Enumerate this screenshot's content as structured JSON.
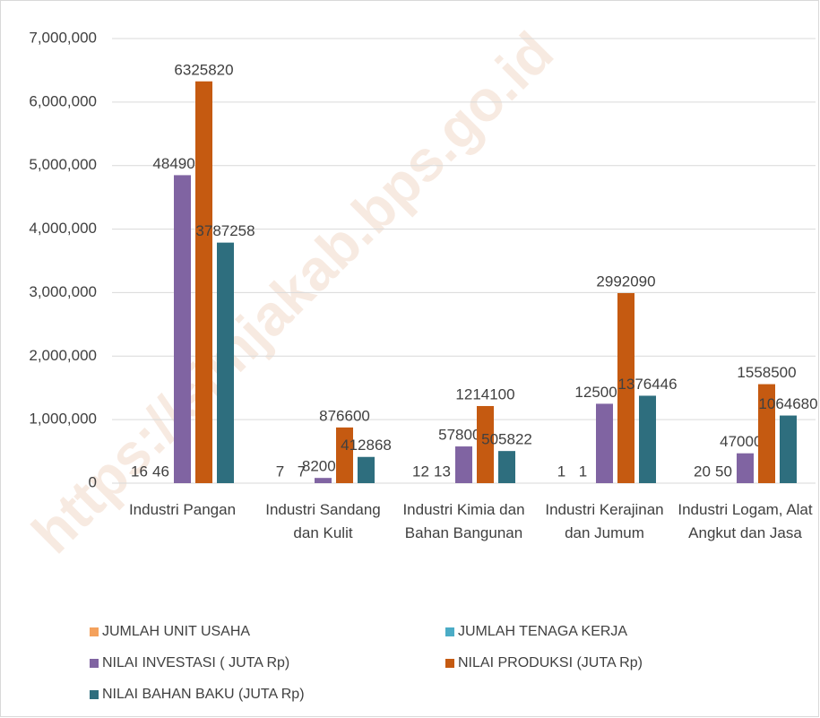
{
  "chart_data": {
    "type": "bar",
    "categories": [
      "Industri Pangan",
      "Industri Sandang dan Kulit",
      "Industri Kimia dan Bahan Bangunan",
      "Industri Kerajinan dan Jumum",
      "Industri Logam, Alat Angkut dan Jasa"
    ],
    "series": [
      {
        "name": "JUMLAH UNIT USAHA",
        "color": "#f4a15c",
        "values": [
          16,
          7,
          12,
          1,
          20
        ]
      },
      {
        "name": "JUMLAH TENAGA KERJA",
        "color": "#4bacc6",
        "values": [
          46,
          7,
          13,
          1,
          50
        ]
      },
      {
        "name": "NILAI INVESTASI ( JUTA Rp)",
        "color": "#8064a2",
        "values": [
          4849000,
          82000,
          578000,
          1250000,
          470000
        ]
      },
      {
        "name": "NILAI PRODUKSI (JUTA Rp)",
        "color": "#c55a11",
        "values": [
          6325820,
          876600,
          1214100,
          2992090,
          1558500
        ]
      },
      {
        "name": "NILAI BAHAN BAKU (JUTA  Rp)",
        "color": "#2e6e7e",
        "values": [
          3787258,
          412868,
          505822,
          1376446,
          1064680
        ]
      }
    ],
    "ylim": [
      0,
      7000000
    ],
    "yticks": [
      0,
      {
        "value": 1000000,
        "label": "1,000,000"
      },
      {
        "value": 2000000,
        "label": "2,000,000"
      },
      {
        "value": 3000000,
        "label": "3,000,000"
      },
      {
        "value": 4000000,
        "label": "4,000,000"
      },
      {
        "value": 5000000,
        "label": "5,000,000"
      },
      {
        "value": 6000000,
        "label": "6,000,000"
      },
      {
        "value": 7000000,
        "label": "7,000,000"
      }
    ],
    "grid": true,
    "legend": "bottom",
    "watermark": "https://simjakab.bps.go.id"
  }
}
